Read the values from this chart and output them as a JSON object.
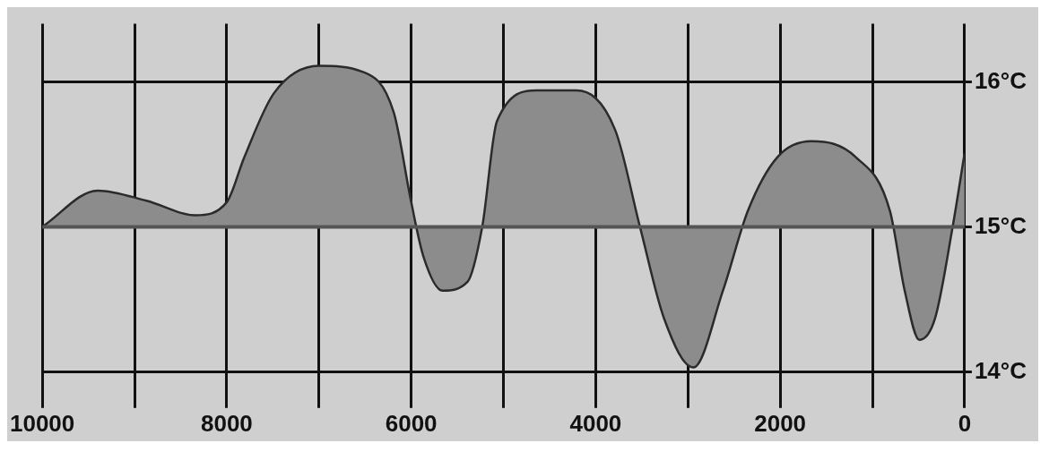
{
  "chart_data": {
    "type": "area",
    "x": [
      10000,
      9400,
      8870,
      8340,
      8000,
      7810,
      7490,
      7000,
      6530,
      6190,
      6000,
      5870,
      5660,
      5390,
      5230,
      5070,
      4640,
      4210,
      3790,
      3520,
      3260,
      2940,
      2620,
      2350,
      2030,
      1660,
      1180,
      810,
      650,
      490,
      320,
      130,
      0
    ],
    "series": [
      {
        "color": "#8c8c8c",
        "values": [
          15.0,
          15.25,
          15.18,
          15.08,
          15.17,
          15.48,
          15.92,
          16.11,
          16.07,
          15.79,
          15.17,
          14.8,
          14.56,
          14.62,
          15.0,
          15.73,
          15.94,
          15.94,
          15.67,
          15.0,
          14.37,
          14.03,
          14.56,
          15.11,
          15.48,
          15.59,
          15.48,
          15.11,
          14.56,
          14.22,
          14.37,
          15.0,
          15.51
        ]
      }
    ],
    "xlim": [
      10000,
      0
    ],
    "xticks": [
      10000,
      {
        "value": 9000,
        "label": null
      },
      8000,
      {
        "value": 7000,
        "label": null
      },
      6000,
      {
        "value": 5000,
        "label": null
      },
      4000,
      {
        "value": 3000,
        "label": null
      },
      2000,
      {
        "value": 1000,
        "label": null
      },
      0
    ],
    "ylim": [
      13.8,
      16.4
    ],
    "yticks": [
      {
        "value": 14,
        "label": "14°C"
      },
      {
        "value": 15,
        "label": "15°C"
      },
      {
        "value": 16,
        "label": "16°C"
      }
    ],
    "ref_lines": [
      {
        "axis": "y",
        "value": 15,
        "color": "#555555"
      }
    ],
    "grid": true,
    "legend": false,
    "marker": "none",
    "line_style": "solid"
  }
}
